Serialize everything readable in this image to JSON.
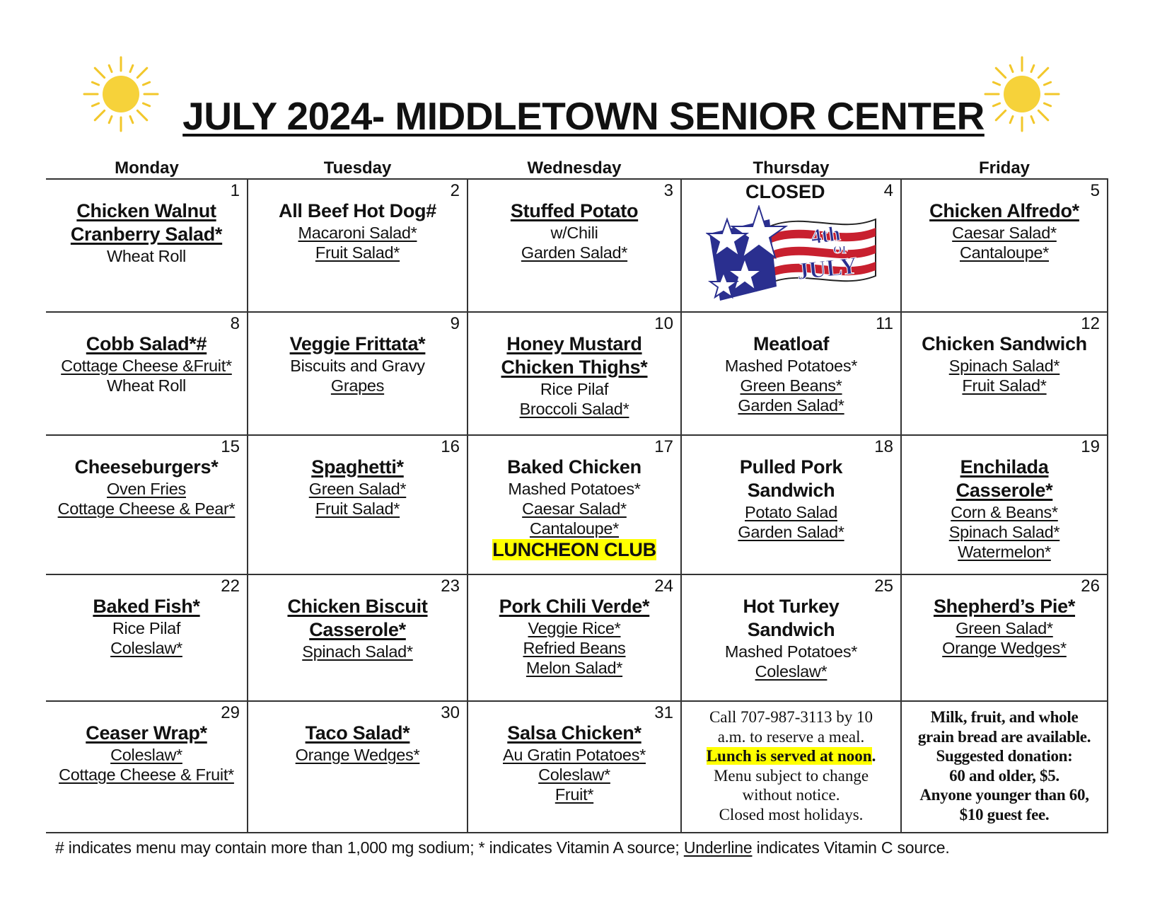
{
  "title": "JULY 2024- MIDDLETOWN SENIOR CENTER",
  "colors": {
    "sun": "#f6d23a",
    "sun_rays": "#f2c72a",
    "highlight": "#ffff00",
    "flag_red": "#c8202f",
    "flag_blue": "#2a2f8f"
  },
  "icons": {
    "left": "sun-icon",
    "right": "sun-icon",
    "holiday": "4th-of-july-flag-icon"
  },
  "weekdays": [
    "Monday",
    "Tuesday",
    "Wednesday",
    "Thursday",
    "Friday"
  ],
  "weeks": [
    [
      {
        "num": "1",
        "lines": [
          {
            "t": "Chicken Walnut",
            "b": true,
            "u": true
          },
          {
            "t": "Cranberry Salad*",
            "b": true,
            "u": true
          },
          {
            "t": "Wheat Roll"
          }
        ]
      },
      {
        "num": "2",
        "lines": [
          {
            "t": "All Beef Hot Dog#",
            "b": true
          },
          {
            "t": "Macaroni Salad*",
            "u": true
          },
          {
            "t": "Fruit Salad*",
            "u": true
          }
        ]
      },
      {
        "num": "3",
        "lines": [
          {
            "t": "Stuffed Potato",
            "b": true,
            "u": true
          },
          {
            "t": "w/Chili"
          },
          {
            "t": "Garden Salad*",
            "u": true
          }
        ]
      },
      {
        "num": "4",
        "closed": "CLOSED",
        "flag_text": [
          "4th",
          "OF",
          "JULY"
        ],
        "lines": []
      },
      {
        "num": "5",
        "lines": [
          {
            "t": "Chicken Alfredo*",
            "b": true,
            "u": true
          },
          {
            "t": "Caesar Salad*",
            "u": true
          },
          {
            "t": "Cantaloupe*",
            "u": true
          }
        ]
      }
    ],
    [
      {
        "num": "8",
        "lines": [
          {
            "t": "Cobb Salad*#",
            "b": true,
            "u": true
          },
          {
            "t": "Cottage Cheese &Fruit*",
            "u": true
          },
          {
            "t": "Wheat Roll"
          }
        ]
      },
      {
        "num": "9",
        "lines": [
          {
            "t": "Veggie Frittata*",
            "b": true,
            "u": true
          },
          {
            "t": "Biscuits and Gravy"
          },
          {
            "t": "Grapes",
            "u": true
          }
        ]
      },
      {
        "num": "10",
        "lines": [
          {
            "t": "Honey Mustard",
            "b": true,
            "u": true
          },
          {
            "t": "Chicken Thighs*",
            "b": true,
            "u": true
          },
          {
            "t": "Rice Pilaf"
          },
          {
            "t": "Broccoli Salad*",
            "u": true
          }
        ]
      },
      {
        "num": "11",
        "lines": [
          {
            "t": "Meatloaf",
            "b": true
          },
          {
            "t": "Mashed Potatoes*"
          },
          {
            "t": "Green Beans*",
            "u": true
          },
          {
            "t": "Garden Salad*",
            "u": true
          }
        ]
      },
      {
        "num": "12",
        "lines": [
          {
            "t": "Chicken Sandwich",
            "b": true
          },
          {
            "t": "Spinach Salad*",
            "u": true
          },
          {
            "t": "Fruit Salad*",
            "u": true
          }
        ]
      }
    ],
    [
      {
        "num": "15",
        "lines": [
          {
            "t": "Cheeseburgers*",
            "b": true
          },
          {
            "t": "Oven Fries",
            "u": true
          },
          {
            "t": "Cottage Cheese & Pear*",
            "u": true
          }
        ]
      },
      {
        "num": "16",
        "lines": [
          {
            "t": "Spaghetti*",
            "b": true,
            "u": true
          },
          {
            "t": "Green Salad*",
            "u": true
          },
          {
            "t": "Fruit Salad*",
            "u": true
          }
        ]
      },
      {
        "num": "17",
        "lines": [
          {
            "t": "Baked Chicken",
            "b": true
          },
          {
            "t": "Mashed Potatoes*"
          },
          {
            "t": "Caesar Salad*",
            "u": true
          },
          {
            "t": "Cantaloupe*",
            "u": true
          },
          {
            "t": "LUNCHEON CLUB",
            "b": true,
            "hl": true
          }
        ]
      },
      {
        "num": "18",
        "lines": [
          {
            "t": "Pulled Pork",
            "b": true
          },
          {
            "t": "Sandwich",
            "b": true
          },
          {
            "t": "Potato Salad",
            "u": true
          },
          {
            "t": "Garden Salad*",
            "u": true
          }
        ]
      },
      {
        "num": "19",
        "lines": [
          {
            "t": "Enchilada",
            "b": true,
            "u": true
          },
          {
            "t": "Casserole*",
            "b": true,
            "u": true
          },
          {
            "t": "Corn & Beans*",
            "u": true
          },
          {
            "t": "Spinach Salad*",
            "u": true
          },
          {
            "t": "Watermelon*",
            "u": true
          }
        ]
      }
    ],
    [
      {
        "num": "22",
        "lines": [
          {
            "t": "Baked Fish*",
            "b": true,
            "u": true
          },
          {
            "t": "Rice Pilaf"
          },
          {
            "t": "Coleslaw*",
            "u": true
          }
        ]
      },
      {
        "num": "23",
        "lines": [
          {
            "t": "Chicken Biscuit",
            "b": true,
            "u": true
          },
          {
            "t": "Casserole*",
            "b": true,
            "u": true
          },
          {
            "t": "Spinach Salad*",
            "u": true
          }
        ]
      },
      {
        "num": "24",
        "lines": [
          {
            "t": "Pork Chili Verde*",
            "b": true,
            "u": true
          },
          {
            "t": "Veggie Rice*",
            "u": true
          },
          {
            "t": "Refried Beans",
            "u": true
          },
          {
            "t": "Melon Salad*",
            "u": true
          }
        ]
      },
      {
        "num": "25",
        "lines": [
          {
            "t": "Hot Turkey",
            "b": true
          },
          {
            "t": "Sandwich",
            "b": true
          },
          {
            "t": "Mashed Potatoes*"
          },
          {
            "t": "Coleslaw*",
            "u": true
          }
        ]
      },
      {
        "num": "26",
        "lines": [
          {
            "t": "Shepherd’s Pie*",
            "b": true,
            "u": true
          },
          {
            "t": "Green Salad*",
            "u": true
          },
          {
            "t": "Orange Wedges*",
            "u": true
          }
        ]
      }
    ],
    [
      {
        "num": "29",
        "lines": [
          {
            "t": "Ceaser Wrap*",
            "b": true,
            "u": true
          },
          {
            "t": "Coleslaw*",
            "u": true
          },
          {
            "t": "Cottage Cheese & Fruit*",
            "u": true
          }
        ]
      },
      {
        "num": "30",
        "lines": [
          {
            "t": "Taco Salad*",
            "b": true,
            "u": true
          },
          {
            "t": "Orange Wedges*",
            "u": true
          }
        ]
      },
      {
        "num": "31",
        "lines": [
          {
            "t": "Salsa Chicken*",
            "b": true,
            "u": true
          },
          {
            "t": "Au Gratin Potatoes*",
            "u": true
          },
          {
            "t": "Coleslaw*",
            "u": true
          },
          {
            "t": "Fruit*",
            "u": true
          }
        ]
      }
    ]
  ],
  "info_note": {
    "line1": "Call 707-987-3113 by 10",
    "line2": "a.m. to reserve a meal.",
    "highlight": "Lunch is served at noon",
    "highlight_end": ".",
    "line4": "Menu subject to change",
    "line5": "without notice.",
    "line6": "Closed most holidays."
  },
  "donation_note": [
    "Milk, fruit, and whole",
    "grain bread are available.",
    "Suggested donation:",
    "60 and older, $5.",
    "Anyone younger than 60,",
    "$10 guest fee."
  ],
  "footer": {
    "before": "# indicates menu may contain more than 1,000 mg sodium; * indicates Vitamin A source; ",
    "underline_word": "Underline",
    "after": " indicates Vitamin C source."
  }
}
